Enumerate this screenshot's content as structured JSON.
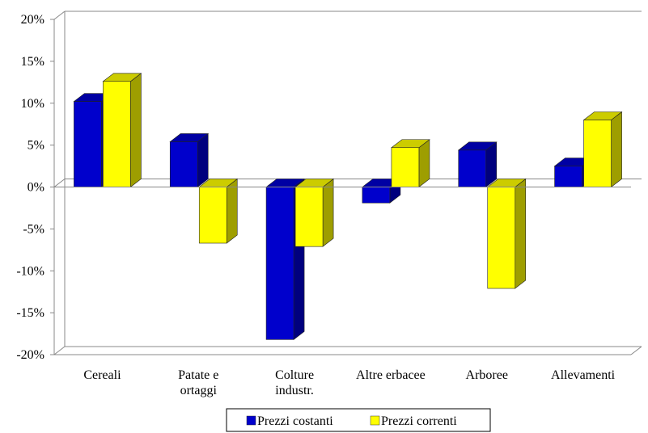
{
  "chart_data": {
    "type": "bar",
    "categories": [
      [
        "Cereali"
      ],
      [
        "Patate e",
        "ortaggi"
      ],
      [
        "Colture",
        "industr."
      ],
      [
        "Altre erbacee"
      ],
      [
        "Arboree"
      ],
      [
        "Allevamenti"
      ]
    ],
    "series": [
      {
        "name": "Prezzi costanti",
        "color": "#0000cc",
        "values": [
          10.2,
          5.4,
          -18.2,
          -1.9,
          4.4,
          2.5
        ]
      },
      {
        "name": "Prezzi correnti",
        "color": "#ffff00",
        "values": [
          12.6,
          -6.7,
          -7.1,
          4.7,
          -12.1,
          8.0
        ]
      }
    ],
    "ylim": [
      -20,
      20
    ],
    "ytick_labels": [
      "20%",
      "15%",
      "10%",
      "5%",
      "0%",
      "-5%",
      "-10%",
      "-15%",
      "-20%"
    ],
    "title": "",
    "xlabel": "",
    "ylabel": "",
    "grid": false,
    "legend": "bottom",
    "style": "3d"
  }
}
